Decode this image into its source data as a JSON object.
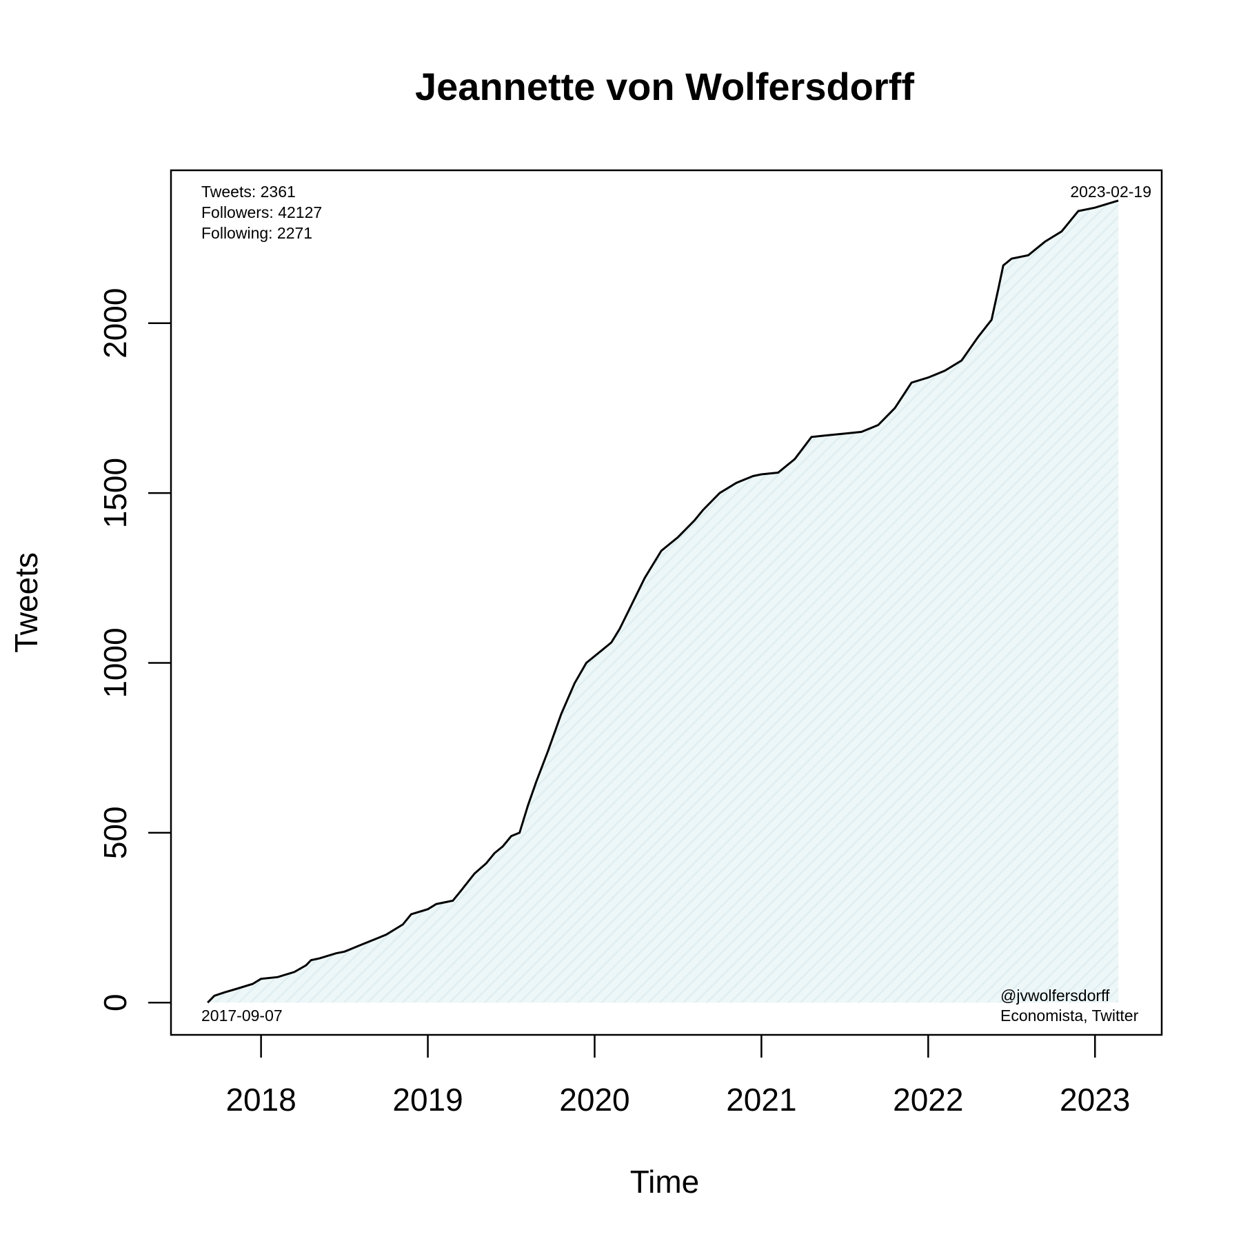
{
  "chart_data": {
    "type": "area",
    "title": "Jeannette von Wolfersdorff",
    "xlabel": "Time",
    "ylabel": "Tweets",
    "xlim": [
      2017.46,
      2023.4
    ],
    "ylim": [
      -95,
      2450
    ],
    "x_ticks": [
      2018,
      2019,
      2020,
      2021,
      2022,
      2023
    ],
    "x_tick_labels": [
      "2018",
      "2019",
      "2020",
      "2021",
      "2022",
      "2023"
    ],
    "y_ticks": [
      0,
      500,
      1000,
      1500,
      2000
    ],
    "y_tick_labels": [
      "0",
      "500",
      "1000",
      "1500",
      "2000"
    ],
    "grid": false,
    "colors": {
      "line": "#000000",
      "fill": "#e4f1f3"
    },
    "stats": {
      "tweets": "Tweets: 2361",
      "followers": "Followers: 42127",
      "following": "Following: 2271"
    },
    "start_label": "2017-09-07",
    "end_label": "2023-02-19",
    "handle": "@jvwolfersdorff",
    "description": "Economista, Twitter",
    "series": [
      {
        "x": [
          2017.68,
          2017.72,
          2017.78,
          2017.85,
          2017.95,
          2018.0,
          2018.1,
          2018.2,
          2018.27,
          2018.3,
          2018.35,
          2018.45,
          2018.5,
          2018.6,
          2018.7,
          2018.75,
          2018.85,
          2018.9,
          2019.0,
          2019.05,
          2019.15,
          2019.2,
          2019.28,
          2019.35,
          2019.4,
          2019.45,
          2019.5,
          2019.55,
          2019.6,
          2019.65,
          2019.72,
          2019.8,
          2019.88,
          2019.95,
          2020.0,
          2020.05,
          2020.1,
          2020.15,
          2020.2,
          2020.3,
          2020.4,
          2020.5,
          2020.6,
          2020.65,
          2020.75,
          2020.85,
          2020.95,
          2021.0,
          2021.1,
          2021.2,
          2021.3,
          2021.4,
          2021.5,
          2021.6,
          2021.7,
          2021.8,
          2021.9,
          2022.0,
          2022.1,
          2022.2,
          2022.3,
          2022.38,
          2022.42,
          2022.45,
          2022.5,
          2022.6,
          2022.7,
          2022.8,
          2022.9,
          2023.0,
          2023.1,
          2023.14
        ],
        "y": [
          0,
          20,
          30,
          40,
          55,
          70,
          75,
          90,
          110,
          125,
          130,
          145,
          150,
          170,
          190,
          200,
          230,
          260,
          275,
          290,
          300,
          330,
          380,
          410,
          440,
          460,
          490,
          500,
          580,
          650,
          740,
          850,
          940,
          1000,
          1020,
          1040,
          1060,
          1100,
          1150,
          1250,
          1330,
          1370,
          1420,
          1450,
          1500,
          1530,
          1550,
          1555,
          1560,
          1600,
          1665,
          1670,
          1675,
          1680,
          1700,
          1750,
          1825,
          1840,
          1860,
          1890,
          1960,
          2010,
          2100,
          2170,
          2190,
          2200,
          2240,
          2270,
          2330,
          2340,
          2355,
          2361
        ]
      }
    ]
  }
}
